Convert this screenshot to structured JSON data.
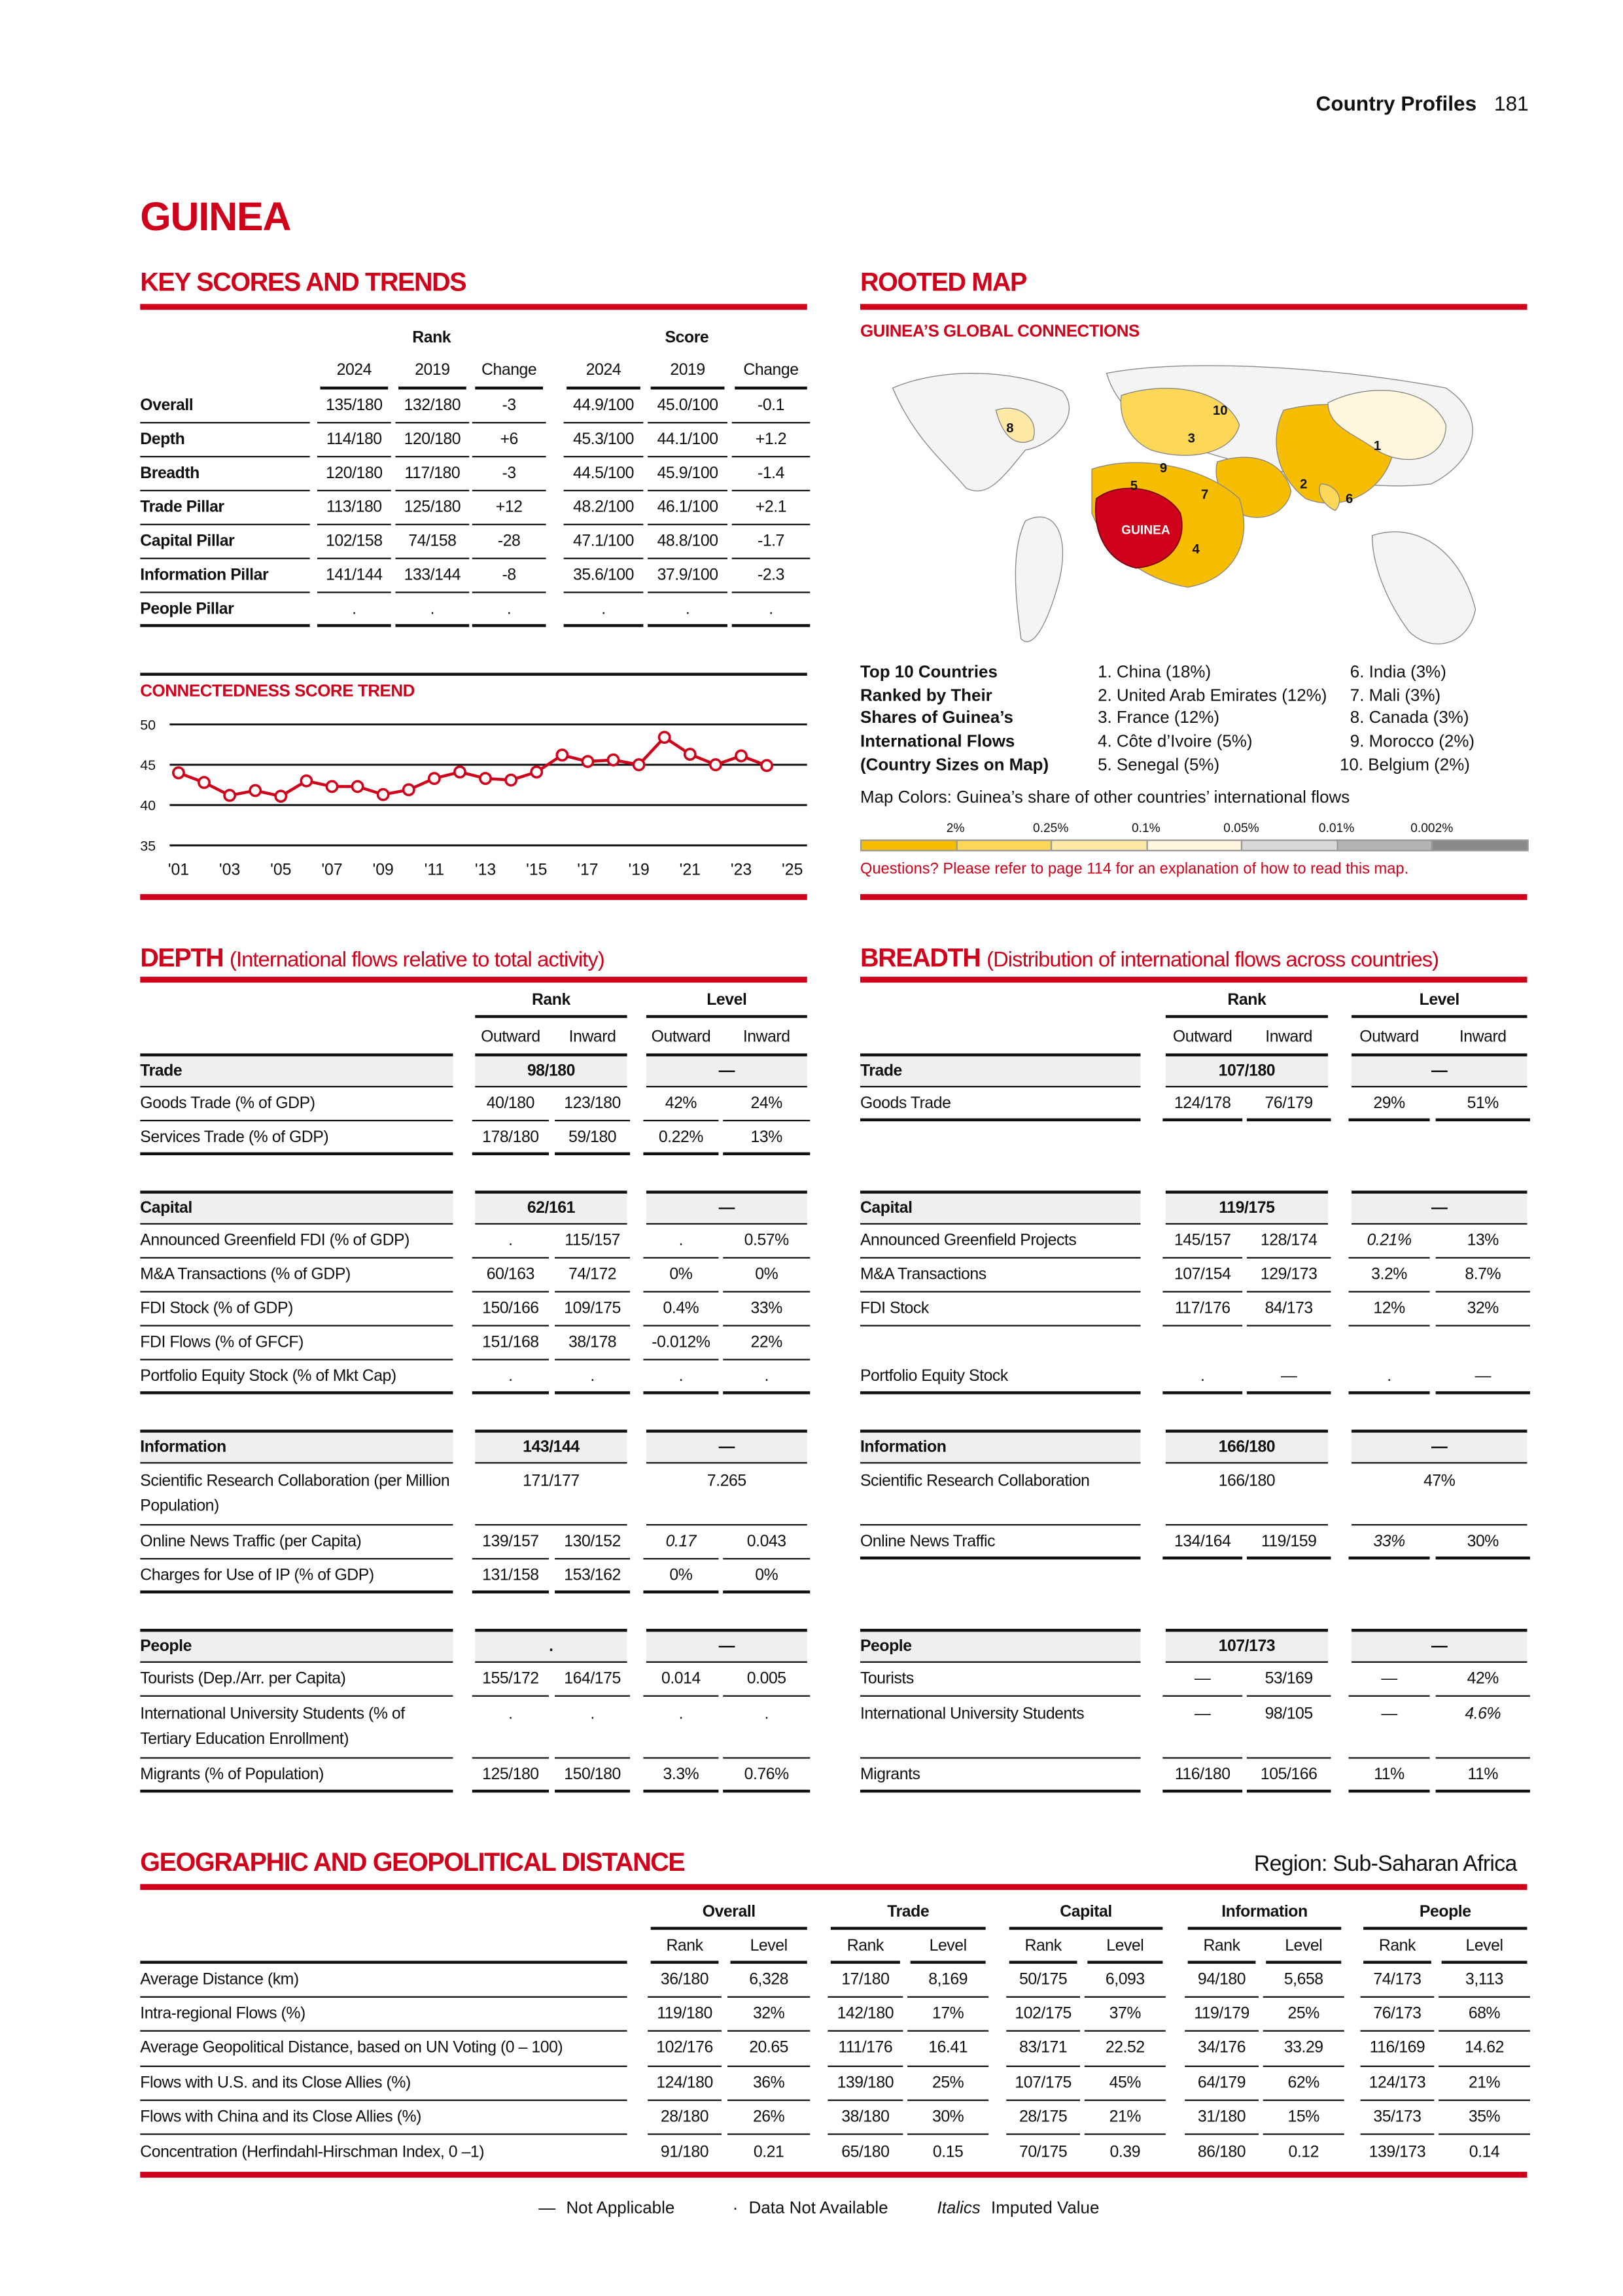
{
  "header": {
    "section": "Country Profiles",
    "page_number": "181"
  },
  "country": "GUINEA",
  "key_scores": {
    "title": "KEY SCORES AND TRENDS",
    "group_headers": [
      "Rank",
      "Score"
    ],
    "columns": [
      "2024",
      "2019",
      "Change",
      "2024",
      "2019",
      "Change"
    ],
    "rows": [
      {
        "label": "Overall",
        "values": [
          "135/180",
          "132/180",
          "-3",
          "44.9/100",
          "45.0/100",
          "-0.1"
        ]
      },
      {
        "label": "Depth",
        "values": [
          "114/180",
          "120/180",
          "+6",
          "45.3/100",
          "44.1/100",
          "+1.2"
        ]
      },
      {
        "label": "Breadth",
        "values": [
          "120/180",
          "117/180",
          "-3",
          "44.5/100",
          "45.9/100",
          "-1.4"
        ]
      },
      {
        "label": "Trade Pillar",
        "values": [
          "113/180",
          "125/180",
          "+12",
          "48.2/100",
          "46.1/100",
          "+2.1"
        ]
      },
      {
        "label": "Capital Pillar",
        "values": [
          "102/158",
          "74/158",
          "-28",
          "47.1/100",
          "48.8/100",
          "-1.7"
        ]
      },
      {
        "label": "Information Pillar",
        "values": [
          "141/144",
          "133/144",
          "-8",
          "35.6/100",
          "37.9/100",
          "-2.3"
        ]
      },
      {
        "label": "People Pillar",
        "values": [
          ".",
          ".",
          ".",
          ".",
          ".",
          "."
        ]
      }
    ]
  },
  "chart_data": {
    "type": "line",
    "title": "CONNECTEDNESS SCORE TREND",
    "x": [
      2001,
      2002,
      2003,
      2004,
      2005,
      2006,
      2007,
      2008,
      2009,
      2010,
      2011,
      2012,
      2013,
      2014,
      2015,
      2016,
      2017,
      2018,
      2019,
      2020,
      2021,
      2022,
      2023,
      2024
    ],
    "values": [
      44.0,
      42.8,
      41.2,
      41.8,
      41.1,
      43.0,
      42.3,
      42.3,
      41.3,
      41.9,
      43.3,
      44.1,
      43.3,
      43.1,
      44.1,
      46.2,
      45.4,
      45.6,
      45.0,
      48.4,
      46.3,
      45.0,
      46.1,
      44.9
    ],
    "xlim": [
      2001,
      2025
    ],
    "ylim": [
      35,
      50
    ],
    "x_tick_labels": [
      "'01",
      "'03",
      "'05",
      "'07",
      "'09",
      "'11",
      "'13",
      "'15",
      "'17",
      "'19",
      "'21",
      "'23",
      "'25"
    ],
    "y_tick_labels": [
      "50",
      "45",
      "40",
      "35"
    ],
    "y_ticks": [
      50,
      45,
      40,
      35
    ],
    "grid": true,
    "line_color": "#d0021b"
  },
  "rooted_map": {
    "title": "ROOTED MAP",
    "subtitle": "GUINEA’S GLOBAL CONNECTIONS",
    "country_label": "GUINEA",
    "map_numbers": [
      "1",
      "2",
      "3",
      "4",
      "5",
      "6",
      "7",
      "8",
      "9",
      "10"
    ],
    "top10_heading": [
      "Top 10 Countries",
      "Ranked by Their",
      "Shares of Guinea’s",
      "International Flows",
      "(Country Sizes on Map)"
    ],
    "top10": [
      "1. China (18%)",
      "2. United Arab Emirates (12%)",
      "3. France (12%)",
      "4. Côte d’Ivoire (5%)",
      "5. Senegal (5%)",
      "6. India (3%)",
      "7. Mali (3%)",
      "8. Canada (3%)",
      "9. Morocco (2%)",
      "10. Belgium (2%)"
    ],
    "colors_caption": "Map Colors: Guinea’s share of other countries’ international flows",
    "scale_labels": [
      "2%",
      "0.25%",
      "0.1%",
      "0.05%",
      "0.01%",
      "0.002%"
    ],
    "scale_colors": [
      "#f7bd00",
      "#fdd758",
      "#feeaa6",
      "#fff7dd",
      "#d9d9d9",
      "#b3b3b3",
      "#8a8a8a"
    ],
    "highlight_color": "#d0021b",
    "note": "Questions? Please refer to page 114 for an explanation of how to read this map."
  },
  "depth": {
    "title": "DEPTH",
    "subtitle": "(International flows relative to total activity)",
    "group_headers": [
      "Rank",
      "Level"
    ],
    "sub_headers": [
      "Outward",
      "Inward",
      "Outward",
      "Inward"
    ],
    "groups": [
      {
        "name": "Trade",
        "rank": "98/180",
        "level": "—",
        "rows": [
          {
            "label": "Goods Trade (% of GDP)",
            "v": [
              "40/180",
              "123/180",
              "42%",
              "24%"
            ]
          },
          {
            "label": "Services Trade (% of GDP)",
            "v": [
              "178/180",
              "59/180",
              "0.22%",
              "13%"
            ]
          }
        ]
      },
      {
        "name": "Capital",
        "rank": "62/161",
        "level": "—",
        "rows": [
          {
            "label": "Announced Greenfield FDI (% of GDP)",
            "v": [
              ".",
              "115/157",
              ".",
              "0.57%"
            ]
          },
          {
            "label": "M&A Transactions (% of GDP)",
            "v": [
              "60/163",
              "74/172",
              "0%",
              "0%"
            ]
          },
          {
            "label": "FDI Stock (% of GDP)",
            "v": [
              "150/166",
              "109/175",
              "0.4%",
              "33%"
            ]
          },
          {
            "label": "FDI Flows (% of GFCF)",
            "v": [
              "151/168",
              "38/178",
              "-0.012%",
              "22%"
            ]
          },
          {
            "label": "Portfolio Equity Stock (% of Mkt Cap)",
            "v": [
              ".",
              ".",
              ".",
              "."
            ]
          }
        ]
      },
      {
        "name": "Information",
        "rank": "143/144",
        "level": "—",
        "rows": [
          {
            "label": "Scientific Research Collaboration (per Million Population)",
            "rank": "171/177",
            "level": "7.265",
            "tall": true
          },
          {
            "label": "Online News Traffic (per Capita)",
            "v": [
              "139/157",
              "130/152",
              "0.17",
              "0.043"
            ],
            "italic": [
              2
            ]
          },
          {
            "label": "Charges for Use of IP (% of GDP)",
            "v": [
              "131/158",
              "153/162",
              "0%",
              "0%"
            ]
          }
        ]
      },
      {
        "name": "People",
        "rank": ".",
        "level": "—",
        "rows": [
          {
            "label": "Tourists (Dep./Arr. per Capita)",
            "v": [
              "155/172",
              "164/175",
              "0.014",
              "0.005"
            ]
          },
          {
            "label": "International University Students (% of Tertiary Education Enrollment)",
            "v": [
              ".",
              ".",
              ".",
              "."
            ],
            "tall": true
          },
          {
            "label": "Migrants (% of Population)",
            "v": [
              "125/180",
              "150/180",
              "3.3%",
              "0.76%"
            ]
          }
        ]
      }
    ]
  },
  "breadth": {
    "title": "BREADTH",
    "subtitle": "(Distribution of international flows across countries)",
    "group_headers": [
      "Rank",
      "Level"
    ],
    "sub_headers": [
      "Outward",
      "Inward",
      "Outward",
      "Inward"
    ],
    "groups": [
      {
        "name": "Trade",
        "rank": "107/180",
        "level": "—",
        "rows": [
          {
            "label": "Goods Trade",
            "v": [
              "124/178",
              "76/179",
              "29%",
              "51%"
            ]
          },
          {
            "blank": true
          }
        ]
      },
      {
        "name": "Capital",
        "rank": "119/175",
        "level": "—",
        "rows": [
          {
            "label": "Announced Greenfield Projects",
            "v": [
              "145/157",
              "128/174",
              "0.21%",
              "13%"
            ],
            "italic": [
              2
            ]
          },
          {
            "label": "M&A Transactions",
            "v": [
              "107/154",
              "129/173",
              "3.2%",
              "8.7%"
            ]
          },
          {
            "label": "FDI Stock",
            "v": [
              "117/176",
              "84/173",
              "12%",
              "32%"
            ]
          },
          {
            "blank": true
          },
          {
            "label": "Portfolio Equity Stock",
            "v": [
              ".",
              "—",
              ".",
              "—"
            ]
          }
        ]
      },
      {
        "name": "Information",
        "rank": "166/180",
        "level": "—",
        "rows": [
          {
            "label": "Scientific Research Collaboration",
            "rank": "166/180",
            "level": "47%",
            "tall": true
          },
          {
            "label": "Online News Traffic",
            "v": [
              "134/164",
              "119/159",
              "33%",
              "30%"
            ],
            "italic": [
              2
            ]
          },
          {
            "blank": true
          }
        ]
      },
      {
        "name": "People",
        "rank": "107/173",
        "level": "—",
        "rows": [
          {
            "label": "Tourists",
            "v": [
              "—",
              "53/169",
              "—",
              "42%"
            ]
          },
          {
            "label": "International University Students",
            "v": [
              "—",
              "98/105",
              "—",
              "4.6%"
            ],
            "italic": [
              3
            ],
            "tall": true
          },
          {
            "label": "Migrants",
            "v": [
              "116/180",
              "105/166",
              "11%",
              "11%"
            ]
          }
        ]
      }
    ]
  },
  "distance": {
    "title": "GEOGRAPHIC AND GEOPOLITICAL DISTANCE",
    "region": "Region: Sub-Saharan Africa",
    "group_headers": [
      "Overall",
      "Trade",
      "Capital",
      "Information",
      "People"
    ],
    "sub_headers": [
      "Rank",
      "Level"
    ],
    "rows": [
      {
        "label": "Average Distance (km)",
        "v": [
          "36/180",
          "6,328",
          "17/180",
          "8,169",
          "50/175",
          "6,093",
          "94/180",
          "5,658",
          "74/173",
          "3,113"
        ]
      },
      {
        "label": "Intra-regional Flows (%)",
        "v": [
          "119/180",
          "32%",
          "142/180",
          "17%",
          "102/175",
          "37%",
          "119/179",
          "25%",
          "76/173",
          "68%"
        ]
      },
      {
        "label": "Average Geopolitical Distance, based on UN Voting (0 – 100)",
        "v": [
          "102/176",
          "20.65",
          "111/176",
          "16.41",
          "83/171",
          "22.52",
          "34/176",
          "33.29",
          "116/169",
          "14.62"
        ]
      },
      {
        "label": "Flows with U.S. and its Close Allies (%)",
        "v": [
          "124/180",
          "36%",
          "139/180",
          "25%",
          "107/175",
          "45%",
          "64/179",
          "62%",
          "124/173",
          "21%"
        ]
      },
      {
        "label": "Flows with China and its Close Allies (%)",
        "v": [
          "28/180",
          "26%",
          "38/180",
          "30%",
          "28/175",
          "21%",
          "31/180",
          "15%",
          "35/173",
          "35%"
        ]
      },
      {
        "label": "Concentration (Herfindahl-Hirschman Index, 0 –1)",
        "v": [
          "91/180",
          "0.21",
          "65/180",
          "0.15",
          "70/175",
          "0.39",
          "86/180",
          "0.12",
          "139/173",
          "0.14"
        ]
      }
    ]
  },
  "footer_legend": {
    "not_applicable_symbol": "—",
    "not_applicable": "Not Applicable",
    "not_available_symbol": "·",
    "not_available": "Data Not Available",
    "imputed_symbol": "Italics",
    "imputed": "Imputed Value"
  }
}
